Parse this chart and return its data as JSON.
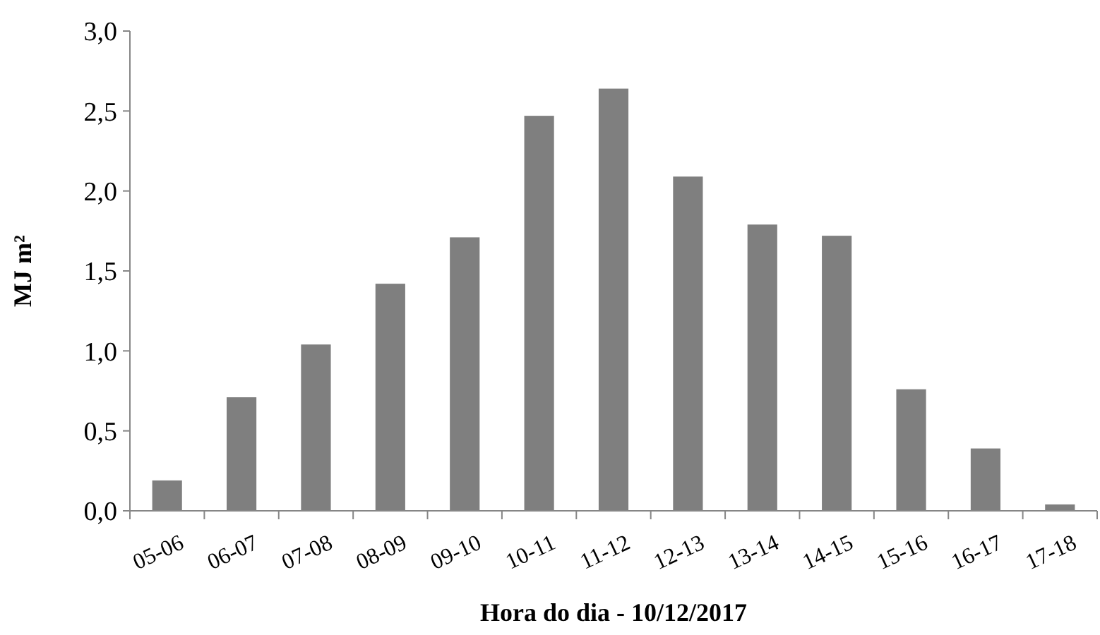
{
  "chart_data": {
    "type": "bar",
    "xlabel": "Hora do dia - 10/12/2017",
    "ylabel": "MJ m²",
    "categories": [
      "05-06",
      "06-07",
      "07-08",
      "08-09",
      "09-10",
      "10-11",
      "11-12",
      "12-13",
      "13-14",
      "14-15",
      "15-16",
      "16-17",
      "17-18"
    ],
    "values": [
      0.19,
      0.71,
      1.04,
      1.42,
      1.71,
      2.47,
      2.64,
      2.09,
      1.79,
      1.72,
      0.76,
      0.39,
      0.04
    ],
    "color": "#7f7f7f",
    "ylim": [
      0,
      3
    ],
    "yticks": [
      {
        "value": 0,
        "label": "0,0"
      },
      {
        "value": 0.5,
        "label": "0,5"
      },
      {
        "value": 1,
        "label": "1,0"
      },
      {
        "value": 1.5,
        "label": "1,5"
      },
      {
        "value": 2,
        "label": "2,0"
      },
      {
        "value": 2.5,
        "label": "2,5"
      },
      {
        "value": 3,
        "label": "3,0"
      }
    ],
    "grid": false
  }
}
